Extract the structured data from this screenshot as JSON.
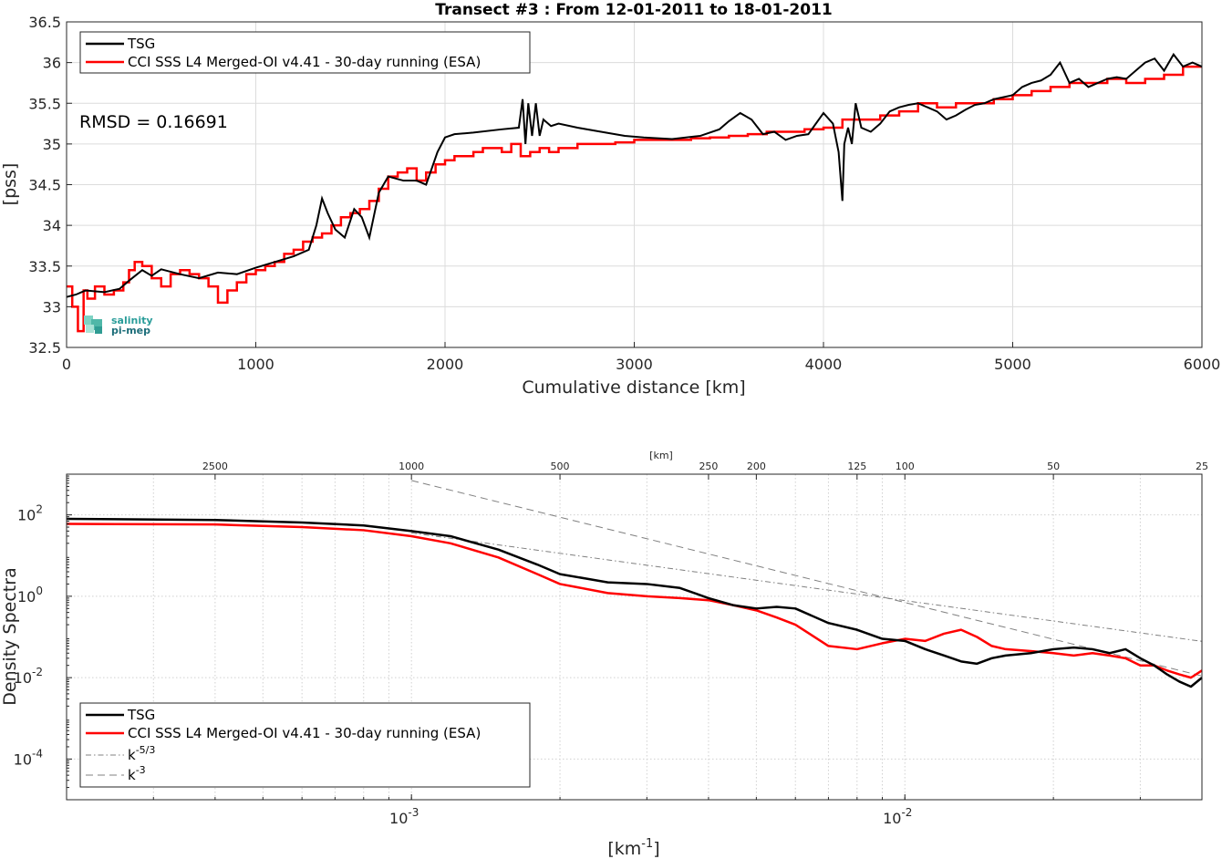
{
  "chart_data": [
    {
      "type": "line",
      "title": "Transect #3 : From 12-01-2011 to 18-01-2011",
      "xlabel": "Cumulative distance [km]",
      "ylabel": "[pss]",
      "xlim": [
        0,
        6000
      ],
      "ylim": [
        32.5,
        36.5
      ],
      "xticks": [
        "0",
        "1000",
        "2000",
        "3000",
        "4000",
        "5000",
        "6000"
      ],
      "yticks": [
        "32.5",
        "33",
        "33.5",
        "34",
        "34.5",
        "35",
        "35.5",
        "36",
        "36.5"
      ],
      "grid": true,
      "legend_position": "top-left",
      "annotation": "RMSD = 0.16691",
      "logo": [
        "salinity",
        "pi-mep"
      ],
      "series": [
        {
          "name": "TSG",
          "color": "#000000",
          "x": [
            0,
            50,
            100,
            200,
            280,
            330,
            400,
            450,
            500,
            600,
            700,
            800,
            900,
            1000,
            1100,
            1200,
            1280,
            1320,
            1350,
            1380,
            1420,
            1470,
            1520,
            1560,
            1600,
            1650,
            1700,
            1780,
            1850,
            1900,
            1930,
            1960,
            2000,
            2050,
            2150,
            2300,
            2390,
            2410,
            2425,
            2440,
            2460,
            2480,
            2500,
            2520,
            2560,
            2600,
            2700,
            2800,
            2950,
            3050,
            3200,
            3350,
            3450,
            3500,
            3560,
            3620,
            3680,
            3740,
            3800,
            3860,
            3920,
            4000,
            4050,
            4080,
            4100,
            4110,
            4130,
            4150,
            4170,
            4200,
            4250,
            4300,
            4350,
            4400,
            4450,
            4500,
            4550,
            4600,
            4650,
            4700,
            4750,
            4800,
            4850,
            4900,
            5000,
            5050,
            5100,
            5150,
            5200,
            5250,
            5300,
            5350,
            5400,
            5450,
            5500,
            5550,
            5600,
            5650,
            5700,
            5750,
            5800,
            5850,
            5900,
            5950,
            6000
          ],
          "values": [
            33.12,
            33.15,
            33.2,
            33.18,
            33.22,
            33.32,
            33.45,
            33.38,
            33.46,
            33.4,
            33.35,
            33.42,
            33.4,
            33.48,
            33.55,
            33.62,
            33.7,
            34.0,
            34.33,
            34.15,
            33.95,
            33.85,
            34.2,
            34.1,
            33.85,
            34.4,
            34.6,
            34.55,
            34.55,
            34.5,
            34.7,
            34.9,
            35.08,
            35.12,
            35.14,
            35.18,
            35.2,
            35.55,
            35.0,
            35.5,
            35.1,
            35.5,
            35.1,
            35.3,
            35.22,
            35.25,
            35.2,
            35.16,
            35.1,
            35.08,
            35.06,
            35.1,
            35.18,
            35.28,
            35.38,
            35.3,
            35.12,
            35.15,
            35.05,
            35.1,
            35.12,
            35.38,
            35.25,
            34.9,
            34.3,
            35.0,
            35.2,
            35.0,
            35.5,
            35.2,
            35.15,
            35.25,
            35.4,
            35.45,
            35.48,
            35.5,
            35.45,
            35.4,
            35.3,
            35.35,
            35.42,
            35.48,
            35.5,
            35.55,
            35.6,
            35.7,
            35.75,
            35.78,
            35.85,
            36.0,
            35.75,
            35.8,
            35.7,
            35.75,
            35.8,
            35.82,
            35.8,
            35.9,
            36.0,
            36.05,
            35.9,
            36.1,
            35.95,
            36.0,
            35.95
          ]
        },
        {
          "name": "CCI SSS L4 Merged-OI v4.41 - 30-day running (ESA)",
          "color": "#ff0000",
          "x": [
            0,
            30,
            60,
            90,
            110,
            150,
            200,
            250,
            300,
            330,
            360,
            400,
            450,
            500,
            550,
            600,
            650,
            700,
            750,
            800,
            850,
            900,
            950,
            1000,
            1050,
            1100,
            1150,
            1200,
            1250,
            1300,
            1350,
            1400,
            1450,
            1500,
            1550,
            1600,
            1650,
            1700,
            1750,
            1800,
            1850,
            1900,
            1950,
            2000,
            2050,
            2100,
            2150,
            2200,
            2250,
            2300,
            2350,
            2400,
            2450,
            2500,
            2550,
            2600,
            2700,
            2800,
            2900,
            3000,
            3100,
            3200,
            3300,
            3400,
            3500,
            3600,
            3700,
            3800,
            3900,
            4000,
            4100,
            4200,
            4300,
            4400,
            4500,
            4600,
            4700,
            4800,
            4900,
            5000,
            5100,
            5200,
            5300,
            5400,
            5500,
            5600,
            5700,
            5800,
            5900,
            6000
          ],
          "values": [
            33.25,
            33.0,
            32.7,
            33.2,
            33.1,
            33.25,
            33.15,
            33.2,
            33.3,
            33.45,
            33.55,
            33.5,
            33.35,
            33.25,
            33.4,
            33.45,
            33.4,
            33.35,
            33.25,
            33.05,
            33.2,
            33.3,
            33.4,
            33.45,
            33.5,
            33.55,
            33.65,
            33.7,
            33.8,
            33.85,
            33.9,
            34.0,
            34.1,
            34.15,
            34.2,
            34.3,
            34.45,
            34.6,
            34.65,
            34.7,
            34.55,
            34.65,
            34.75,
            34.8,
            34.85,
            34.85,
            34.9,
            34.95,
            34.95,
            34.9,
            35.0,
            34.85,
            34.9,
            34.95,
            34.9,
            34.95,
            35.0,
            35.0,
            35.02,
            35.05,
            35.05,
            35.05,
            35.07,
            35.08,
            35.1,
            35.12,
            35.15,
            35.15,
            35.18,
            35.2,
            35.3,
            35.3,
            35.35,
            35.4,
            35.5,
            35.45,
            35.5,
            35.5,
            35.55,
            35.6,
            35.65,
            35.7,
            35.75,
            35.75,
            35.8,
            35.75,
            35.8,
            35.85,
            35.95,
            35.95
          ]
        }
      ]
    },
    {
      "type": "line",
      "title": "",
      "xlabel": "[km-1]",
      "ylabel": "Density Spectra",
      "x_scale": "log",
      "y_scale": "log",
      "xlim": [
        0.0002,
        0.04
      ],
      "ylim": [
        1e-05,
        1000
      ],
      "xticks": [
        {
          "value": 0.001,
          "base": "10",
          "exp": "-3"
        },
        {
          "value": 0.01,
          "base": "10",
          "exp": "-2"
        }
      ],
      "yticks": [
        {
          "value": 100,
          "base": "10",
          "exp": "2"
        },
        {
          "value": 1,
          "base": "10",
          "exp": "0"
        },
        {
          "value": 0.01,
          "base": "10",
          "exp": "-2"
        },
        {
          "value": 0.0001,
          "base": "10",
          "exp": "-4"
        }
      ],
      "top_axis_label": "[km]",
      "top_ticks": [
        "2500",
        "1000",
        "500",
        "250",
        "200",
        "125",
        "100",
        "50",
        "25"
      ],
      "grid": true,
      "legend_position": "bottom-left",
      "series": [
        {
          "name": "TSG",
          "color": "#000000",
          "x": [
            0.0002,
            0.0004,
            0.0006,
            0.0008,
            0.001,
            0.0012,
            0.0015,
            0.0018,
            0.002,
            0.0025,
            0.003,
            0.0035,
            0.004,
            0.0045,
            0.005,
            0.0055,
            0.006,
            0.007,
            0.008,
            0.009,
            0.01,
            0.011,
            0.012,
            0.013,
            0.014,
            0.015,
            0.016,
            0.018,
            0.02,
            0.022,
            0.024,
            0.026,
            0.028,
            0.03,
            0.032,
            0.034,
            0.036,
            0.038,
            0.04
          ],
          "values": [
            80,
            75,
            65,
            55,
            40,
            30,
            14,
            6,
            3.5,
            2.2,
            2.0,
            1.6,
            0.9,
            0.6,
            0.5,
            0.55,
            0.5,
            0.22,
            0.15,
            0.09,
            0.08,
            0.05,
            0.035,
            0.025,
            0.022,
            0.03,
            0.035,
            0.04,
            0.05,
            0.055,
            0.05,
            0.04,
            0.05,
            0.03,
            0.02,
            0.012,
            0.008,
            0.006,
            0.01
          ]
        },
        {
          "name": "CCI SSS L4 Merged-OI v4.41 - 30-day running (ESA)",
          "color": "#ff0000",
          "x": [
            0.0002,
            0.0004,
            0.0006,
            0.0008,
            0.001,
            0.0012,
            0.0015,
            0.0018,
            0.002,
            0.0025,
            0.003,
            0.0035,
            0.004,
            0.0045,
            0.005,
            0.0055,
            0.006,
            0.007,
            0.008,
            0.009,
            0.01,
            0.011,
            0.012,
            0.013,
            0.014,
            0.015,
            0.016,
            0.018,
            0.02,
            0.022,
            0.024,
            0.026,
            0.028,
            0.03,
            0.032,
            0.034,
            0.036,
            0.038,
            0.04
          ],
          "values": [
            60,
            58,
            50,
            42,
            30,
            20,
            9,
            3.5,
            2.0,
            1.2,
            1.0,
            0.9,
            0.8,
            0.6,
            0.45,
            0.3,
            0.2,
            0.06,
            0.05,
            0.07,
            0.09,
            0.08,
            0.12,
            0.15,
            0.1,
            0.06,
            0.05,
            0.045,
            0.04,
            0.035,
            0.04,
            0.035,
            0.03,
            0.02,
            0.02,
            0.015,
            0.012,
            0.01,
            0.015
          ]
        },
        {
          "name": "k-5/3",
          "color": "#808080",
          "x": [
            0.001,
            0.04
          ],
          "values": [
            36,
            0.078
          ]
        },
        {
          "name": "k-3",
          "color": "#808080",
          "x": [
            0.001,
            0.04
          ],
          "values": [
            700,
            0.011
          ]
        }
      ]
    }
  ]
}
